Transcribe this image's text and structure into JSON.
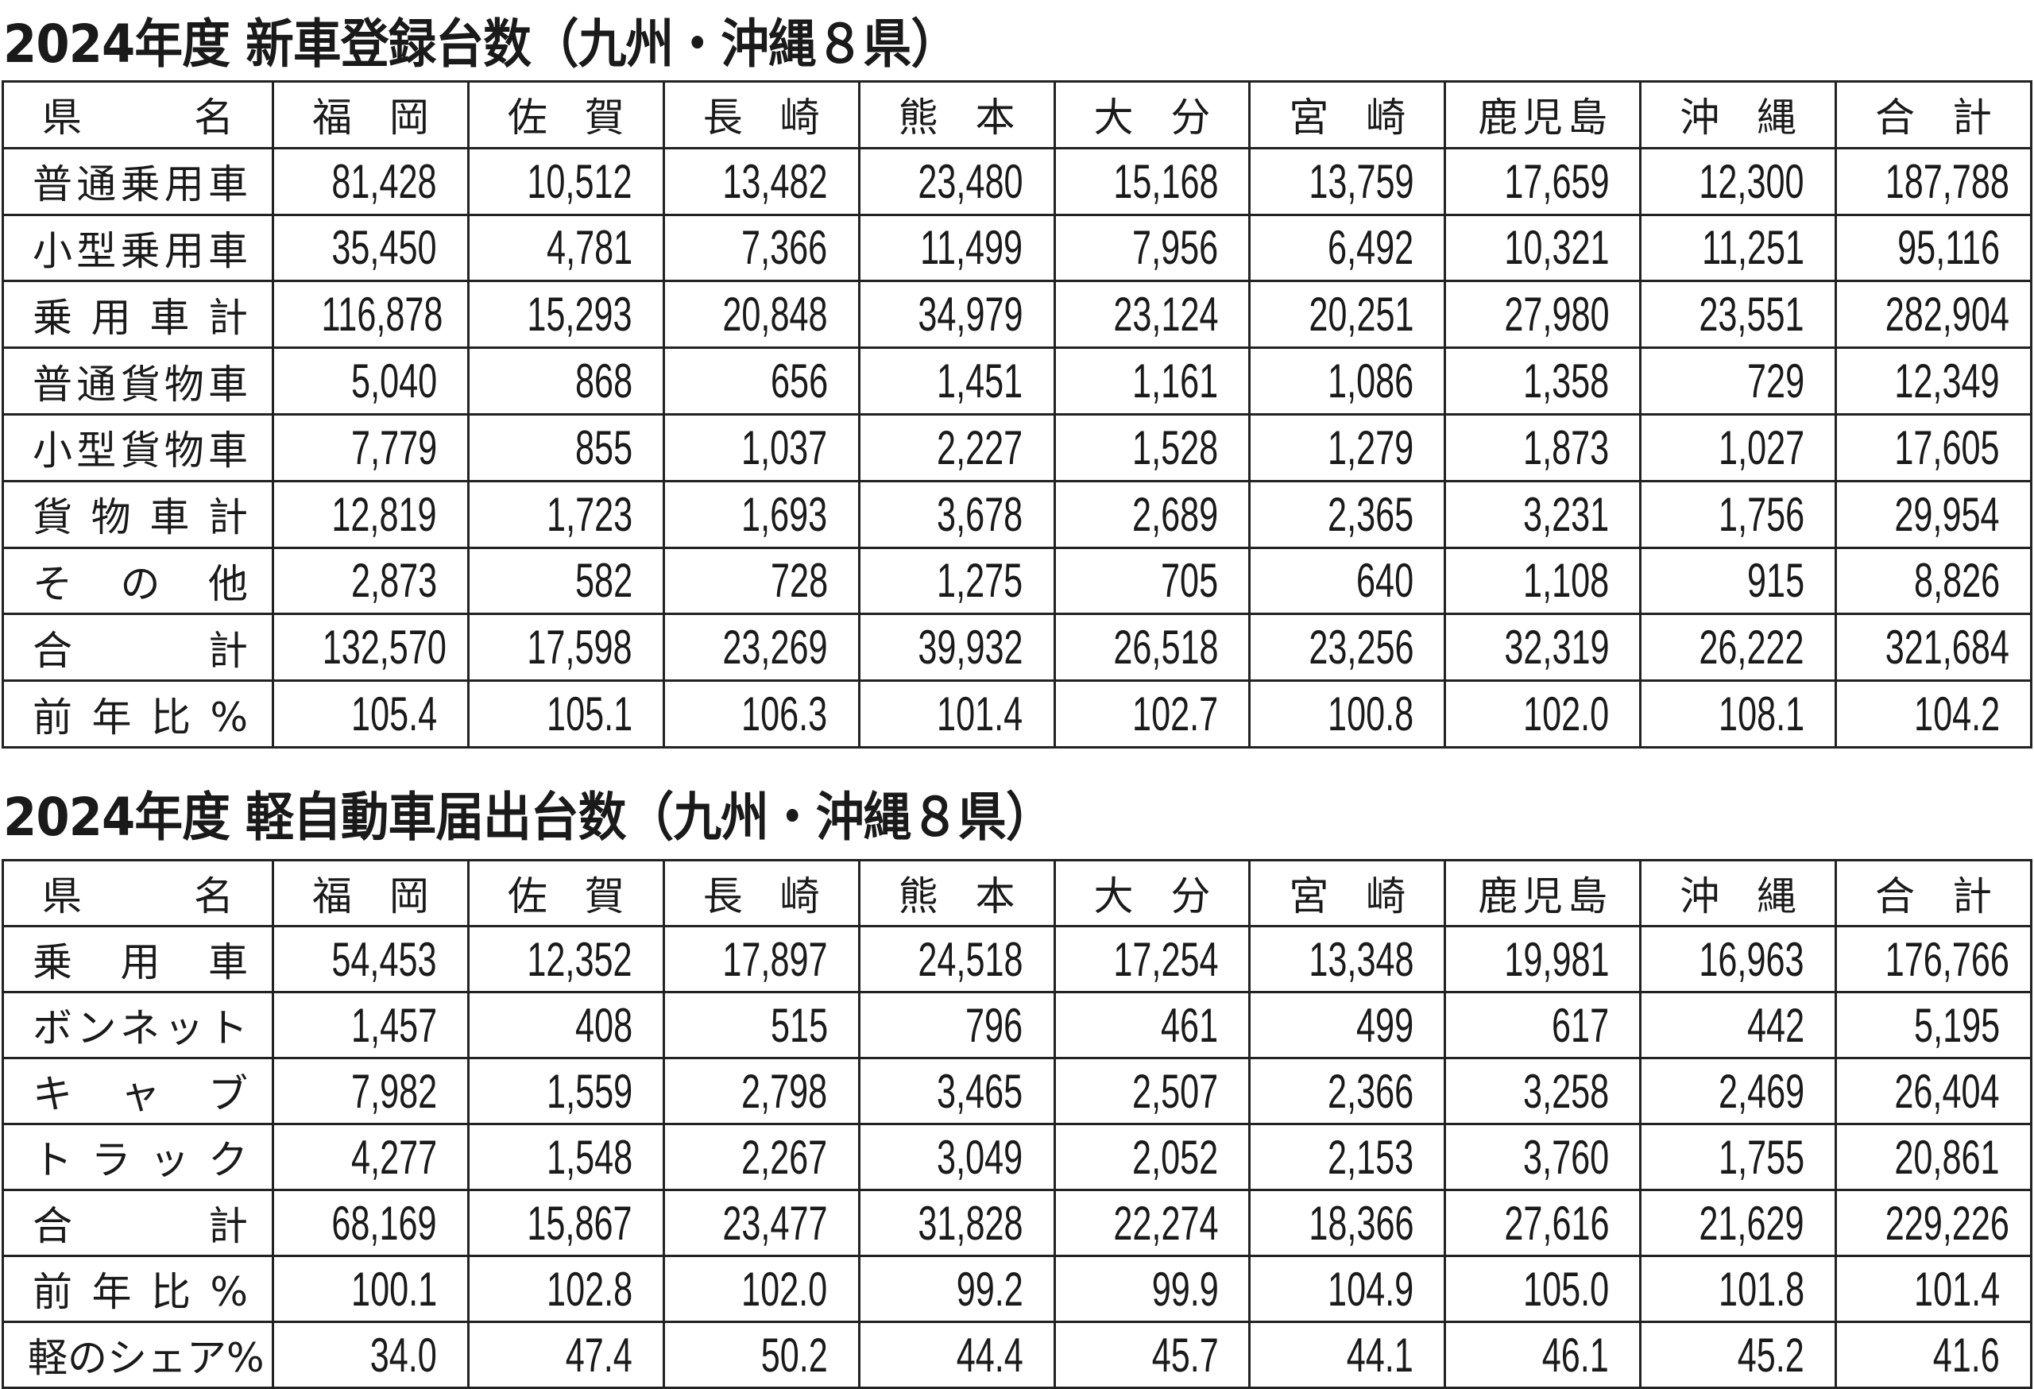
{
  "table1": {
    "title": "2024年度 新車登録台数（九州・沖縄８県）",
    "headers": [
      "県名",
      "福岡",
      "佐賀",
      "長崎",
      "熊本",
      "大分",
      "宮崎",
      "鹿児島",
      "沖縄",
      "合計"
    ],
    "rows": [
      {
        "label": "普通乗用車",
        "values": [
          "81,428",
          "10,512",
          "13,482",
          "23,480",
          "15,168",
          "13,759",
          "17,659",
          "12,300",
          "187,788"
        ]
      },
      {
        "label": "小型乗用車",
        "values": [
          "35,450",
          "4,781",
          "7,366",
          "11,499",
          "7,956",
          "6,492",
          "10,321",
          "11,251",
          "95,116"
        ]
      },
      {
        "label": "乗用車計",
        "values": [
          "116,878",
          "15,293",
          "20,848",
          "34,979",
          "23,124",
          "20,251",
          "27,980",
          "23,551",
          "282,904"
        ]
      },
      {
        "label": "普通貨物車",
        "values": [
          "5,040",
          "868",
          "656",
          "1,451",
          "1,161",
          "1,086",
          "1,358",
          "729",
          "12,349"
        ]
      },
      {
        "label": "小型貨物車",
        "values": [
          "7,779",
          "855",
          "1,037",
          "2,227",
          "1,528",
          "1,279",
          "1,873",
          "1,027",
          "17,605"
        ]
      },
      {
        "label": "貨物車計",
        "values": [
          "12,819",
          "1,723",
          "1,693",
          "3,678",
          "2,689",
          "2,365",
          "3,231",
          "1,756",
          "29,954"
        ]
      },
      {
        "label": "その他",
        "values": [
          "2,873",
          "582",
          "728",
          "1,275",
          "705",
          "640",
          "1,108",
          "915",
          "8,826"
        ]
      },
      {
        "label": "合計",
        "values": [
          "132,570",
          "17,598",
          "23,269",
          "39,932",
          "26,518",
          "23,256",
          "32,319",
          "26,222",
          "321,684"
        ]
      },
      {
        "label": "前年比%",
        "values": [
          "105.4",
          "105.1",
          "106.3",
          "101.4",
          "102.7",
          "100.8",
          "102.0",
          "108.1",
          "104.2"
        ]
      }
    ]
  },
  "table2": {
    "title": "2024年度 軽自動車届出台数（九州・沖縄８県）",
    "headers": [
      "県名",
      "福岡",
      "佐賀",
      "長崎",
      "熊本",
      "大分",
      "宮崎",
      "鹿児島",
      "沖縄",
      "合計"
    ],
    "rows": [
      {
        "label": "乗用車",
        "values": [
          "54,453",
          "12,352",
          "17,897",
          "24,518",
          "17,254",
          "13,348",
          "19,981",
          "16,963",
          "176,766"
        ]
      },
      {
        "label": "ボンネット",
        "values": [
          "1,457",
          "408",
          "515",
          "796",
          "461",
          "499",
          "617",
          "442",
          "5,195"
        ]
      },
      {
        "label": "キャブ",
        "values": [
          "7,982",
          "1,559",
          "2,798",
          "3,465",
          "2,507",
          "2,366",
          "3,258",
          "2,469",
          "26,404"
        ]
      },
      {
        "label": "トラック",
        "values": [
          "4,277",
          "1,548",
          "2,267",
          "3,049",
          "2,052",
          "2,153",
          "3,760",
          "1,755",
          "20,861"
        ]
      },
      {
        "label": "合計",
        "values": [
          "68,169",
          "15,867",
          "23,477",
          "31,828",
          "22,274",
          "18,366",
          "27,616",
          "21,629",
          "229,226"
        ]
      },
      {
        "label": "前年比%",
        "values": [
          "100.1",
          "102.8",
          "102.0",
          "99.2",
          "99.9",
          "104.9",
          "105.0",
          "101.8",
          "101.4"
        ]
      },
      {
        "label": "軽のシェア%",
        "values": [
          "34.0",
          "47.4",
          "50.2",
          "44.4",
          "45.7",
          "44.1",
          "46.1",
          "45.2",
          "41.6"
        ]
      }
    ]
  }
}
